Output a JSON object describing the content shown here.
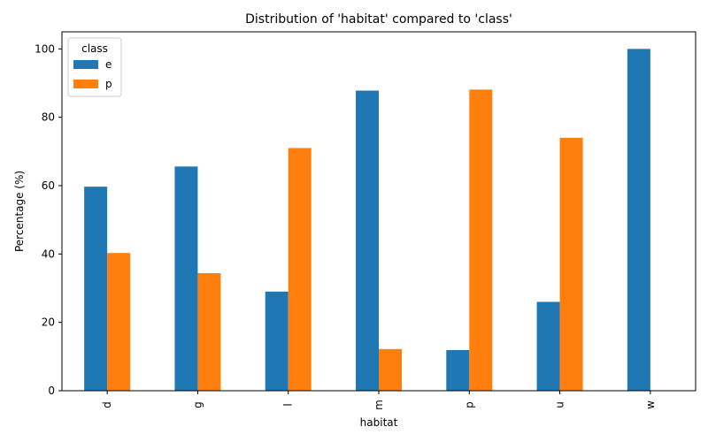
{
  "chart_data": {
    "type": "bar",
    "title": "Distribution of 'habitat' compared to 'class'",
    "xlabel": "habitat",
    "ylabel": "Percentage (%)",
    "categories": [
      "d",
      "g",
      "l",
      "m",
      "p",
      "u",
      "w"
    ],
    "series": [
      {
        "name": "e",
        "color": "#1f77b4",
        "values": [
          59.7,
          65.6,
          29.0,
          87.8,
          11.9,
          26.0,
          100.0
        ]
      },
      {
        "name": "p",
        "color": "#ff7f0e",
        "values": [
          40.3,
          34.4,
          71.0,
          12.2,
          88.1,
          74.0,
          0.0
        ]
      }
    ],
    "ylim": [
      0,
      105
    ],
    "yticks": [
      0,
      20,
      40,
      60,
      80,
      100
    ],
    "grid": false,
    "legend": {
      "title": "class",
      "placement": "top-left"
    }
  }
}
